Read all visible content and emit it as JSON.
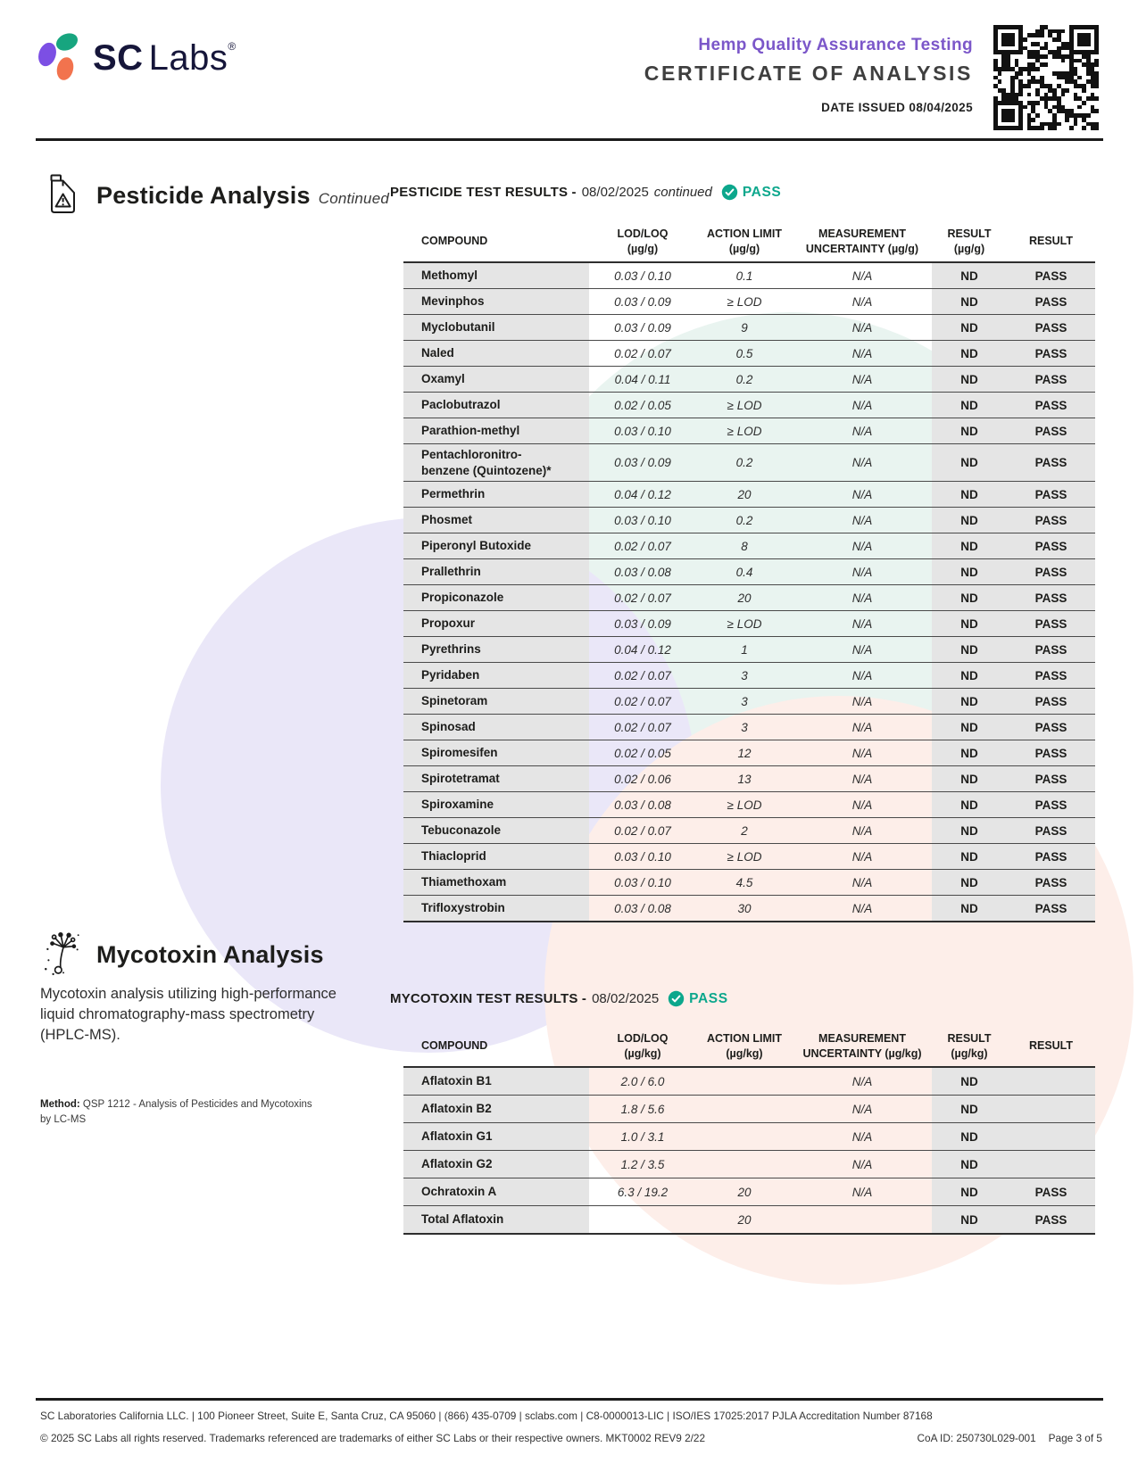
{
  "colors": {
    "accent_purple": "#7b57c9",
    "pass_teal": "#0ca78c",
    "logo_navy": "#16163a",
    "logo_purple": "#7c4fe4",
    "logo_green": "#17a57f",
    "logo_orange": "#f2734e",
    "table_gray": "#e5e5e5"
  },
  "header": {
    "logo": {
      "sc": "SC",
      "labs": "Labs",
      "reg": "®"
    },
    "program_title": "Hemp Quality Assurance Testing",
    "document_title": "CERTIFICATE OF ANALYSIS",
    "date_issued": "DATE ISSUED 08/04/2025"
  },
  "pesticide": {
    "section_title": "Pesticide Analysis",
    "section_subtitle": "Continued",
    "results_title": "PESTICIDE TEST RESULTS -",
    "results_date": "08/02/2025",
    "results_note": "continued",
    "status": "PASS",
    "table": {
      "columns": [
        {
          "line1": "COMPOUND",
          "line2": ""
        },
        {
          "line1": "LOD/LOQ",
          "line2": "(µg/g)"
        },
        {
          "line1": "ACTION LIMIT",
          "line2": "(µg/g)"
        },
        {
          "line1": "MEASUREMENT",
          "line2": "UNCERTAINTY (µg/g)"
        },
        {
          "line1": "RESULT",
          "line2": "(µg/g)"
        },
        {
          "line1": "RESULT",
          "line2": ""
        }
      ],
      "rows": [
        {
          "compound": "Methomyl",
          "lod_loq": "0.03 / 0.10",
          "action_limit": "0.1",
          "uncertainty": "N/A",
          "result": "ND",
          "status": "PASS"
        },
        {
          "compound": "Mevinphos",
          "lod_loq": "0.03 / 0.09",
          "action_limit": "≥ LOD",
          "uncertainty": "N/A",
          "result": "ND",
          "status": "PASS"
        },
        {
          "compound": "Myclobutanil",
          "lod_loq": "0.03 / 0.09",
          "action_limit": "9",
          "uncertainty": "N/A",
          "result": "ND",
          "status": "PASS"
        },
        {
          "compound": "Naled",
          "lod_loq": "0.02 / 0.07",
          "action_limit": "0.5",
          "uncertainty": "N/A",
          "result": "ND",
          "status": "PASS"
        },
        {
          "compound": "Oxamyl",
          "lod_loq": "0.04 / 0.11",
          "action_limit": "0.2",
          "uncertainty": "N/A",
          "result": "ND",
          "status": "PASS"
        },
        {
          "compound": "Paclobutrazol",
          "lod_loq": "0.02 / 0.05",
          "action_limit": "≥ LOD",
          "uncertainty": "N/A",
          "result": "ND",
          "status": "PASS"
        },
        {
          "compound": "Parathion-methyl",
          "lod_loq": "0.03 / 0.10",
          "action_limit": "≥ LOD",
          "uncertainty": "N/A",
          "result": "ND",
          "status": "PASS"
        },
        {
          "compound": "Pentachloronitro-\nbenzene (Quintozene)*",
          "lod_loq": "0.03 / 0.09",
          "action_limit": "0.2",
          "uncertainty": "N/A",
          "result": "ND",
          "status": "PASS"
        },
        {
          "compound": "Permethrin",
          "lod_loq": "0.04 / 0.12",
          "action_limit": "20",
          "uncertainty": "N/A",
          "result": "ND",
          "status": "PASS"
        },
        {
          "compound": "Phosmet",
          "lod_loq": "0.03 / 0.10",
          "action_limit": "0.2",
          "uncertainty": "N/A",
          "result": "ND",
          "status": "PASS"
        },
        {
          "compound": "Piperonyl Butoxide",
          "lod_loq": "0.02 / 0.07",
          "action_limit": "8",
          "uncertainty": "N/A",
          "result": "ND",
          "status": "PASS"
        },
        {
          "compound": "Prallethrin",
          "lod_loq": "0.03 / 0.08",
          "action_limit": "0.4",
          "uncertainty": "N/A",
          "result": "ND",
          "status": "PASS"
        },
        {
          "compound": "Propiconazole",
          "lod_loq": "0.02 / 0.07",
          "action_limit": "20",
          "uncertainty": "N/A",
          "result": "ND",
          "status": "PASS"
        },
        {
          "compound": "Propoxur",
          "lod_loq": "0.03 / 0.09",
          "action_limit": "≥ LOD",
          "uncertainty": "N/A",
          "result": "ND",
          "status": "PASS"
        },
        {
          "compound": "Pyrethrins",
          "lod_loq": "0.04 / 0.12",
          "action_limit": "1",
          "uncertainty": "N/A",
          "result": "ND",
          "status": "PASS"
        },
        {
          "compound": "Pyridaben",
          "lod_loq": "0.02 / 0.07",
          "action_limit": "3",
          "uncertainty": "N/A",
          "result": "ND",
          "status": "PASS"
        },
        {
          "compound": "Spinetoram",
          "lod_loq": "0.02 / 0.07",
          "action_limit": "3",
          "uncertainty": "N/A",
          "result": "ND",
          "status": "PASS"
        },
        {
          "compound": "Spinosad",
          "lod_loq": "0.02 / 0.07",
          "action_limit": "3",
          "uncertainty": "N/A",
          "result": "ND",
          "status": "PASS"
        },
        {
          "compound": "Spiromesifen",
          "lod_loq": "0.02 / 0.05",
          "action_limit": "12",
          "uncertainty": "N/A",
          "result": "ND",
          "status": "PASS"
        },
        {
          "compound": "Spirotetramat",
          "lod_loq": "0.02 / 0.06",
          "action_limit": "13",
          "uncertainty": "N/A",
          "result": "ND",
          "status": "PASS"
        },
        {
          "compound": "Spiroxamine",
          "lod_loq": "0.03 / 0.08",
          "action_limit": "≥ LOD",
          "uncertainty": "N/A",
          "result": "ND",
          "status": "PASS"
        },
        {
          "compound": "Tebuconazole",
          "lod_loq": "0.02 / 0.07",
          "action_limit": "2",
          "uncertainty": "N/A",
          "result": "ND",
          "status": "PASS"
        },
        {
          "compound": "Thiacloprid",
          "lod_loq": "0.03 / 0.10",
          "action_limit": "≥ LOD",
          "uncertainty": "N/A",
          "result": "ND",
          "status": "PASS"
        },
        {
          "compound": "Thiamethoxam",
          "lod_loq": "0.03 / 0.10",
          "action_limit": "4.5",
          "uncertainty": "N/A",
          "result": "ND",
          "status": "PASS"
        },
        {
          "compound": "Trifloxystrobin",
          "lod_loq": "0.03 / 0.08",
          "action_limit": "30",
          "uncertainty": "N/A",
          "result": "ND",
          "status": "PASS"
        }
      ]
    }
  },
  "mycotoxin": {
    "section_title": "Mycotoxin Analysis",
    "description": "Mycotoxin analysis utilizing high-performance liquid chromatography-mass spectrometry (HPLC-MS).",
    "method_label": "Method:",
    "method_text": "QSP 1212 - Analysis of Pesticides and Mycotoxins by LC-MS",
    "results_title": "MYCOTOXIN TEST RESULTS -",
    "results_date": "08/02/2025",
    "status": "PASS",
    "table": {
      "columns": [
        {
          "line1": "COMPOUND",
          "line2": ""
        },
        {
          "line1": "LOD/LOQ",
          "line2": "(µg/kg)"
        },
        {
          "line1": "ACTION LIMIT",
          "line2": "(µg/kg)"
        },
        {
          "line1": "MEASUREMENT",
          "line2": "UNCERTAINTY (µg/kg)"
        },
        {
          "line1": "RESULT",
          "line2": "(µg/kg)"
        },
        {
          "line1": "RESULT",
          "line2": ""
        }
      ],
      "rows": [
        {
          "compound": "Aflatoxin B1",
          "lod_loq": "2.0 / 6.0",
          "action_limit": "",
          "uncertainty": "N/A",
          "result": "ND",
          "status": ""
        },
        {
          "compound": "Aflatoxin B2",
          "lod_loq": "1.8 / 5.6",
          "action_limit": "",
          "uncertainty": "N/A",
          "result": "ND",
          "status": ""
        },
        {
          "compound": "Aflatoxin G1",
          "lod_loq": "1.0 / 3.1",
          "action_limit": "",
          "uncertainty": "N/A",
          "result": "ND",
          "status": ""
        },
        {
          "compound": "Aflatoxin G2",
          "lod_loq": "1.2 / 3.5",
          "action_limit": "",
          "uncertainty": "N/A",
          "result": "ND",
          "status": ""
        },
        {
          "compound": "Ochratoxin A",
          "lod_loq": "6.3 / 19.2",
          "action_limit": "20",
          "uncertainty": "N/A",
          "result": "ND",
          "status": "PASS"
        },
        {
          "compound": "Total Aflatoxin",
          "lod_loq": "",
          "action_limit": "20",
          "uncertainty": "",
          "result": "ND",
          "status": "PASS"
        }
      ]
    }
  },
  "footer": {
    "line1": "SC Laboratories California LLC. | 100 Pioneer Street, Suite E, Santa Cruz, CA 95060 | (866) 435-0709 | sclabs.com | C8-0000013-LIC | ISO/IES 17025:2017 PJLA Accreditation Number 87168",
    "line2": "© 2025 SC Labs all rights reserved. Trademarks referenced are trademarks of either SC Labs or their respective owners. MKT0002 REV9 2/22",
    "coa_id": "CoA ID: 250730L029-001",
    "page": "Page 3 of 5"
  }
}
